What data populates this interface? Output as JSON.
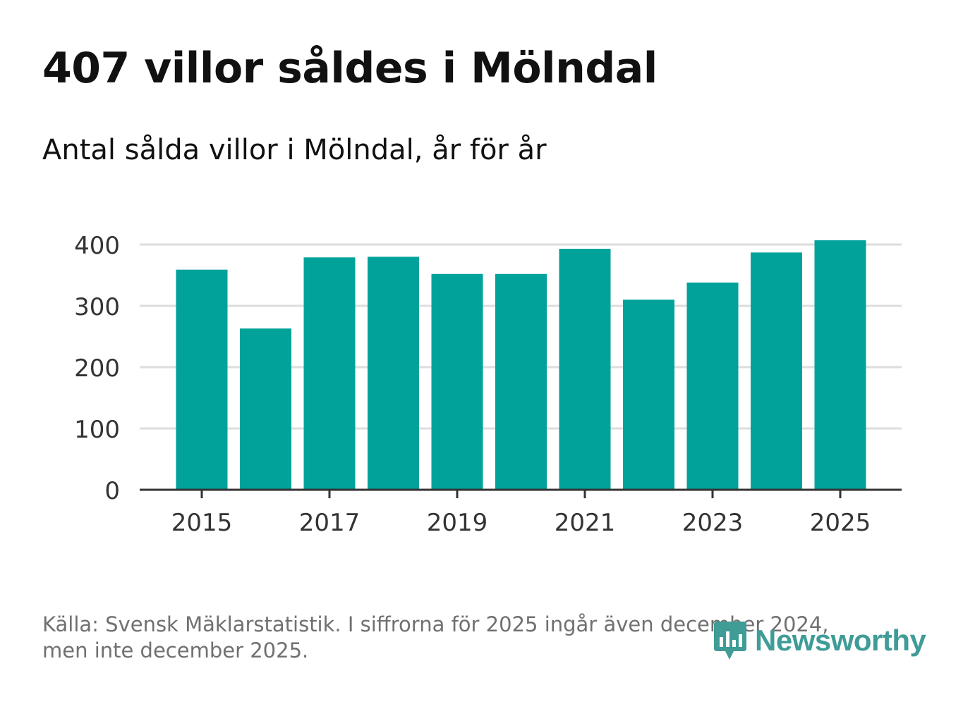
{
  "header": {
    "title": "407 villor såldes i Mölndal",
    "subtitle": "Antal sålda villor i Mölndal, år för år"
  },
  "chart_data": {
    "type": "bar",
    "categories": [
      "2015",
      "2016",
      "2017",
      "2018",
      "2019",
      "2020",
      "2021",
      "2022",
      "2023",
      "2024",
      "2025"
    ],
    "values": [
      359,
      263,
      379,
      380,
      352,
      352,
      393,
      310,
      338,
      387,
      407
    ],
    "x_tick_labels": [
      "2015",
      "2017",
      "2019",
      "2021",
      "2023",
      "2025"
    ],
    "y_ticks": [
      0,
      100,
      200,
      300,
      400
    ],
    "ylim": [
      0,
      420
    ],
    "title": "407 villor såldes i Mölndal",
    "xlabel": "",
    "ylabel": "",
    "grid": true,
    "bar_color": "#00a29a"
  },
  "footer": {
    "source_line1": "Källa: Svensk Mäklarstatistik. I siffrorna för 2025 ingår även december 2024,",
    "source_line2": "men inte december 2025."
  },
  "brand": {
    "name": "Newsworthy",
    "logo_icon": "newsworthy-logo-icon",
    "color": "#3f9c97"
  }
}
